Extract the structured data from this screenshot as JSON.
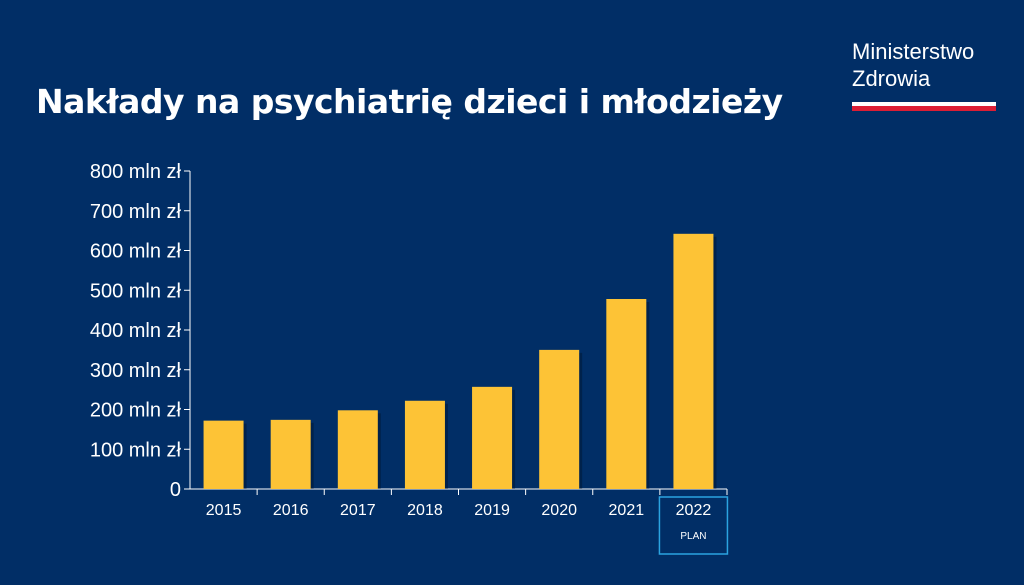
{
  "title": "Nakłady na psychiatrię dzieci i młodzieży",
  "logo": {
    "line1": "Ministerstwo",
    "line2": "Zdrowia"
  },
  "colors": {
    "background": "#012e66",
    "bar": "#fdc336",
    "axis": "#ffffff",
    "plan_box": "#2ba3e0",
    "flag_red": "#dc1e35"
  },
  "chart_data": {
    "type": "bar",
    "categories": [
      "2015",
      "2016",
      "2017",
      "2018",
      "2019",
      "2020",
      "2021",
      "2022"
    ],
    "values": [
      172,
      174,
      198,
      222,
      257,
      350,
      478,
      642
    ],
    "ylim": [
      0,
      800
    ],
    "yticks": [
      0,
      100,
      200,
      300,
      400,
      500,
      600,
      700,
      800
    ],
    "ytick_labels": [
      "0",
      "100 mln zł",
      "200 mln zł",
      "300 mln zł",
      "400 mln zł",
      "500 mln zł",
      "600 mln zł",
      "700 mln zł",
      "800 mln zł"
    ],
    "highlight": {
      "category": "2022",
      "label": "PLAN"
    },
    "grid": false
  }
}
